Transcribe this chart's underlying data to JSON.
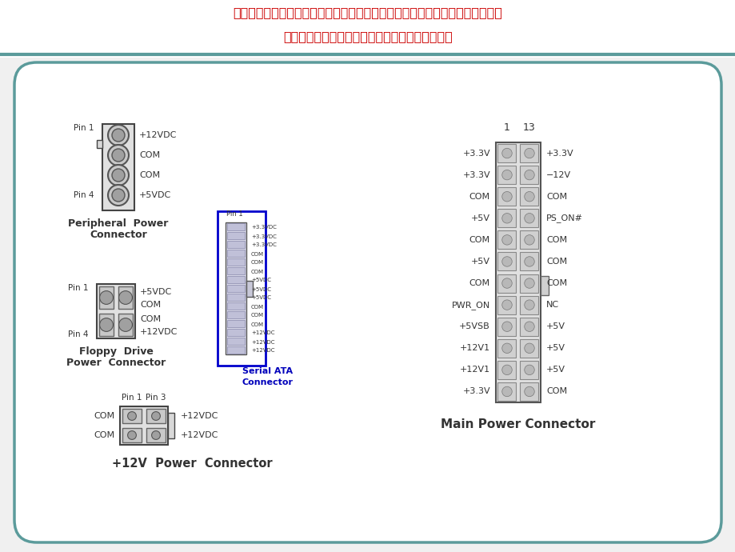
{
  "bg_color": "#f0f0f0",
  "card_border": "#5b9b9b",
  "header_text_color": "#cc0000",
  "header_line1": "文档来源于网络，文档所提供的信息仅供参考之用，不能作为科学依据，请勿模",
  "header_line2": "仿。文档如有不当之处，请联系本人或网站删除。",
  "peripheral_label_line1": "Peripheral  Power",
  "peripheral_label_line2": "Connector",
  "peripheral_pins_right": [
    "+12VDC",
    "COM",
    "COM",
    "+5VDC"
  ],
  "floppy_label_line1": "Floppy  Drive",
  "floppy_label_line2": "Power  Connector",
  "floppy_pins_right": [
    "+5VDC",
    "COM",
    "COM",
    "+12VDC"
  ],
  "sata_label_line1": "Serial ATA",
  "sata_label_line2": "Connector",
  "sata_pins": [
    "+3.3VDC",
    "+3.3VDC",
    "+3.3VDC",
    "COM",
    "COM",
    "COM",
    "+5VDC",
    "+5VDC",
    "+5VDC",
    "COM",
    "COM",
    "COM",
    "+12VDC",
    "+12VDC",
    "+12VDC"
  ],
  "p12v_label": "+12V  Power  Connector",
  "main_label": "Main Power Connector",
  "main_col1": [
    "+3.3V",
    "+3.3V",
    "COM",
    "+5V",
    "COM",
    "+5V",
    "COM",
    "PWR_ON",
    "+5VSB",
    "+12V1",
    "+12V1",
    "+3.3V"
  ],
  "main_col2": [
    "+3.3V",
    "−12V",
    "COM",
    "PS_ON#",
    "COM",
    "COM",
    "COM",
    "NC",
    "+5V",
    "+5V",
    "+5V",
    "COM"
  ],
  "main_pin_header": [
    "1",
    "13"
  ]
}
